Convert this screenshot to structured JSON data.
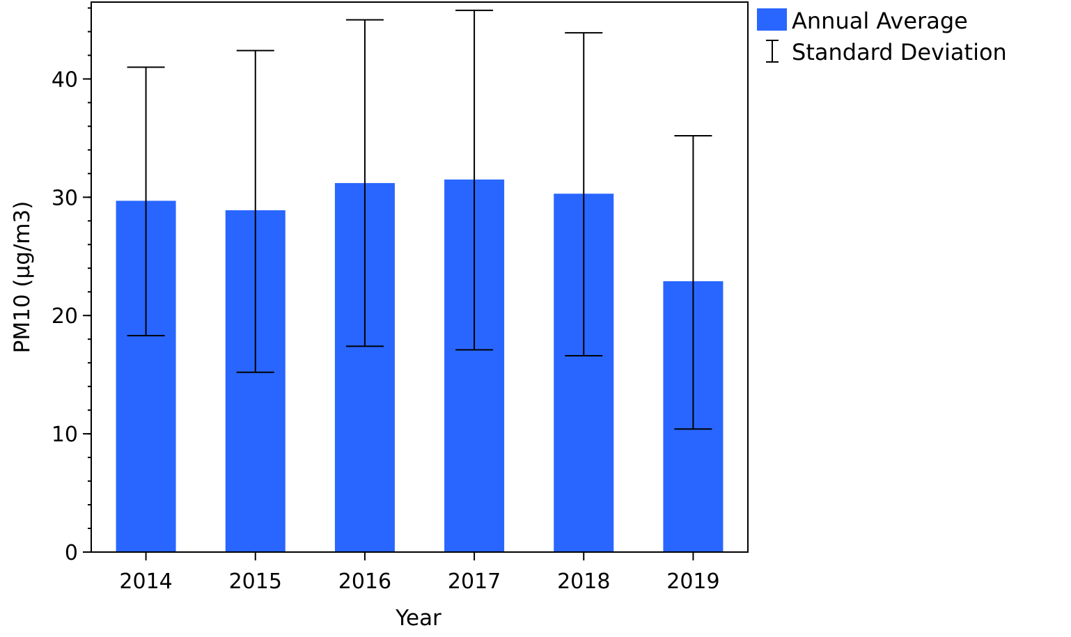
{
  "chart_data": {
    "type": "bar",
    "title": "",
    "xlabel": "Year",
    "ylabel": "PM10 (μg/m3)",
    "categories": [
      "2014",
      "2015",
      "2016",
      "2017",
      "2018",
      "2019"
    ],
    "series": [
      {
        "name": "Annual Average",
        "values": [
          29.7,
          28.9,
          31.2,
          31.5,
          30.3,
          22.9
        ],
        "color": "#2966ff"
      }
    ],
    "error_bars": {
      "name": "Standard Deviation",
      "upper": [
        41.0,
        42.4,
        45.0,
        45.8,
        43.9,
        35.2
      ],
      "lower": [
        18.3,
        15.2,
        17.4,
        17.1,
        16.6,
        10.4
      ]
    },
    "ylim": [
      0,
      46.5
    ],
    "yticks": [
      0,
      10,
      20,
      30,
      40
    ],
    "ytick_labels": [
      "0",
      "10",
      "20",
      "30",
      "40"
    ],
    "y_minor_step": 2,
    "grid": false,
    "legend_position": "top-right-outside"
  }
}
